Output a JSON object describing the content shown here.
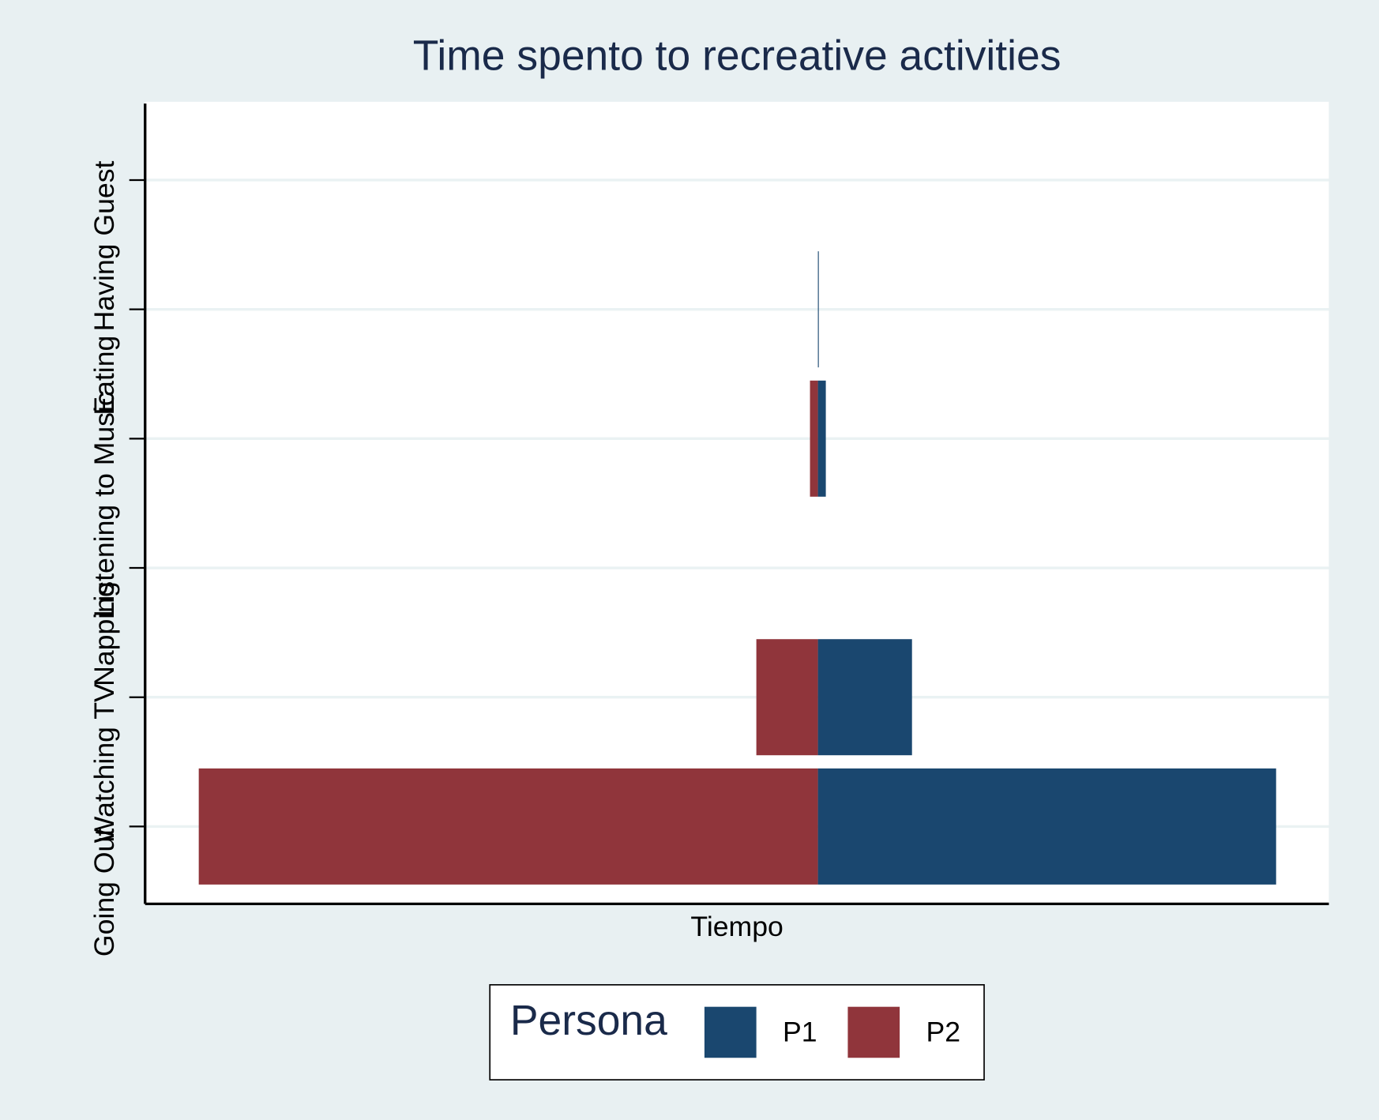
{
  "chart_data": {
    "type": "bar",
    "orientation": "horizontal",
    "title": "Time spento to recreative activities",
    "xlabel": "Tiempo",
    "legend_title": "Persona",
    "categories": [
      "Going Out",
      "Watching TV",
      "Napping",
      "Listening to Music",
      "Eating",
      "Having Guest"
    ],
    "series": [
      {
        "name": "P1",
        "color": "#1a476f",
        "values": [
          5.21,
          1.07,
          0,
          0.09,
          0.01,
          0
        ]
      },
      {
        "name": "P2",
        "color": "#90353b",
        "values": [
          -7.04,
          -0.7,
          0,
          -0.09,
          0,
          0
        ]
      }
    ],
    "xlim": [
      -7.65,
      5.81
    ],
    "grid": true,
    "legend": "bottom"
  }
}
